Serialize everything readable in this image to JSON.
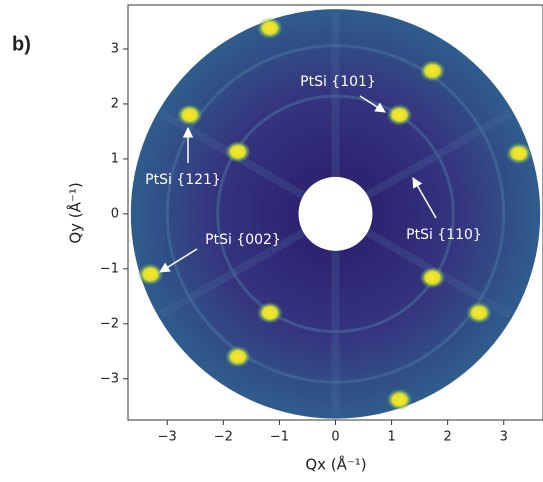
{
  "chart_data": {
    "type": "image",
    "panel_label": "b)",
    "x_label": "Qx (Å⁻¹)",
    "y_label": "Qy (Å⁻¹)",
    "xlim": [
      -3.7,
      3.7
    ],
    "ylim": [
      -3.75,
      3.8
    ],
    "xticks": [
      {
        "value": -3,
        "label": "−3"
      },
      {
        "value": -2,
        "label": "−2"
      },
      {
        "value": -1,
        "label": "−1"
      },
      0,
      1,
      2,
      3
    ],
    "yticks": [
      {
        "value": -3,
        "label": "−3"
      },
      {
        "value": -2,
        "label": "−2"
      },
      {
        "value": -1,
        "label": "−1"
      },
      0,
      1,
      2,
      3
    ],
    "spots": {
      "x": [
        -1.17,
        1.73,
        3.27,
        1.14,
        1.73,
        2.56,
        1.14,
        -1.74,
        -1.17,
        -3.3,
        -2.6,
        -1.74
      ],
      "y": [
        3.38,
        2.6,
        1.1,
        1.8,
        -1.16,
        -1.8,
        -3.38,
        -2.6,
        -1.8,
        -1.1,
        1.8,
        1.13
      ]
    },
    "annotations": [
      "PtSi {101}",
      "PtSi {121}",
      "PtSi {110}",
      "PtSi {002}"
    ]
  }
}
